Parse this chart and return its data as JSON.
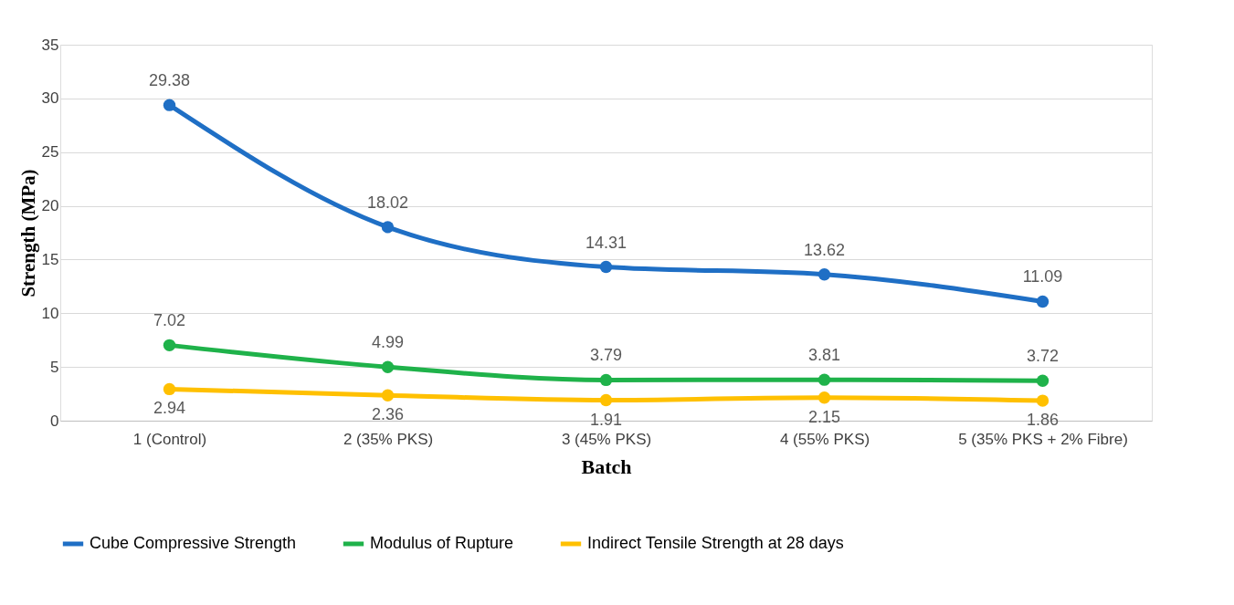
{
  "chart_data": {
    "type": "line",
    "xlabel": "Batch",
    "ylabel": "Strength (MPa)",
    "categories": [
      "1 (Control)",
      "2 (35% PKS)",
      "3 (45% PKS)",
      "4 (55% PKS)",
      "5 (35% PKS + 2% Fibre)"
    ],
    "series": [
      {
        "name": "Cube Compressive Strength",
        "color": "#1f6fc5",
        "values": [
          29.38,
          18.02,
          14.31,
          13.62,
          11.09
        ]
      },
      {
        "name": "Modulus of Rupture",
        "color": "#1fb24a",
        "values": [
          7.02,
          4.99,
          3.79,
          3.81,
          3.72
        ]
      },
      {
        "name": "Indirect Tensile Strength at 28 days",
        "color": "#ffc000",
        "values": [
          2.94,
          2.36,
          1.91,
          2.15,
          1.86
        ]
      }
    ],
    "ylim": [
      0,
      35
    ],
    "yticks": [
      0,
      5,
      10,
      15,
      20,
      25,
      30,
      35
    ],
    "grid": "y",
    "legend": "bottom",
    "marker": "circle",
    "line_style": "solid",
    "data_labels": true
  }
}
